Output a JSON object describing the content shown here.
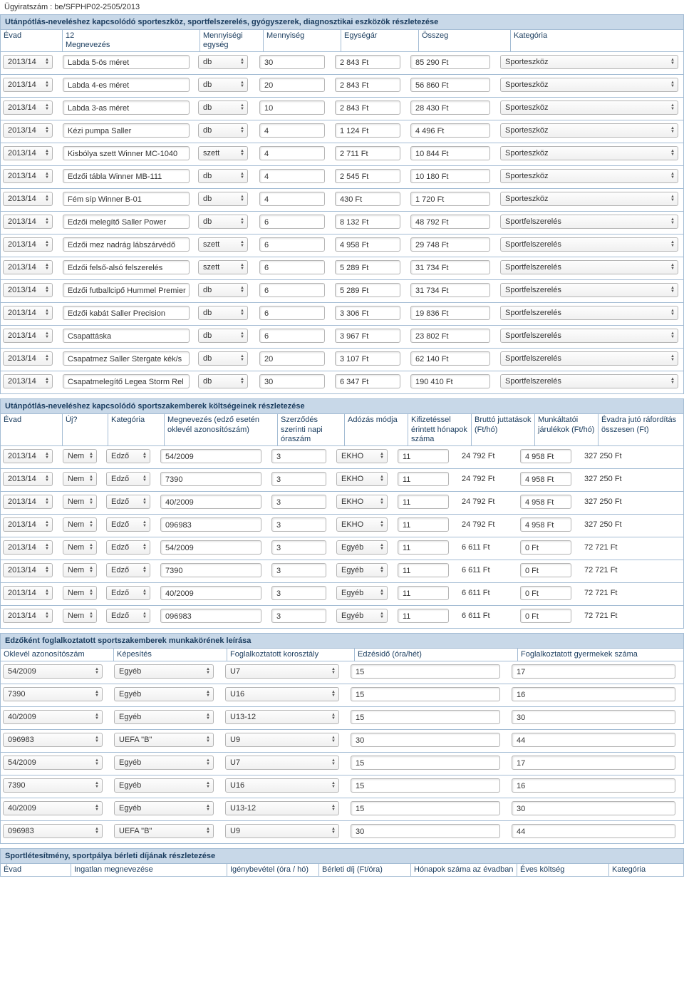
{
  "file_ref": "Ügyiratszám : be/SFPHP02-2505/2013",
  "equip": {
    "title": "Utánpótlás-neveléshez kapcsolódó sporteszköz, sportfelszerelés, gyógyszerek, diagnosztikai eszközök részletezése",
    "headers": [
      "Évad",
      "12\nMegnevezés",
      "Mennyiségi egység",
      "Mennyiség",
      "Egységár",
      "Összeg",
      "Kategória"
    ],
    "rows": [
      {
        "y": "2013/14",
        "n": "Labda 5-ös méret",
        "u": "db",
        "q": "30",
        "p": "2 843 Ft",
        "t": "85 290 Ft",
        "c": "Sporteszköz"
      },
      {
        "y": "2013/14",
        "n": "Labda 4-es méret",
        "u": "db",
        "q": "20",
        "p": "2 843 Ft",
        "t": "56 860 Ft",
        "c": "Sporteszköz"
      },
      {
        "y": "2013/14",
        "n": "Labda 3-as méret",
        "u": "db",
        "q": "10",
        "p": "2 843 Ft",
        "t": "28 430 Ft",
        "c": "Sporteszköz"
      },
      {
        "y": "2013/14",
        "n": "Kézi pumpa Saller",
        "u": "db",
        "q": "4",
        "p": "1 124 Ft",
        "t": "4 496 Ft",
        "c": "Sporteszköz"
      },
      {
        "y": "2013/14",
        "n": "Kisbólya szett Winner MC-1040",
        "u": "szett",
        "q": "4",
        "p": "2 711 Ft",
        "t": "10 844 Ft",
        "c": "Sporteszköz"
      },
      {
        "y": "2013/14",
        "n": "Edzői tábla Winner MB-111",
        "u": "db",
        "q": "4",
        "p": "2 545 Ft",
        "t": "10 180 Ft",
        "c": "Sporteszköz"
      },
      {
        "y": "2013/14",
        "n": "Fém síp Winner B-01",
        "u": "db",
        "q": "4",
        "p": "430 Ft",
        "t": "1 720 Ft",
        "c": "Sporteszköz"
      },
      {
        "y": "2013/14",
        "n": "Edzői melegítő Saller Power",
        "u": "db",
        "q": "6",
        "p": "8 132 Ft",
        "t": "48 792 Ft",
        "c": "Sportfelszerelés"
      },
      {
        "y": "2013/14",
        "n": "Edzői mez nadrág lábszárvédő",
        "u": "szett",
        "q": "6",
        "p": "4 958 Ft",
        "t": "29 748 Ft",
        "c": "Sportfelszerelés"
      },
      {
        "y": "2013/14",
        "n": "Edzői felső-alsó felszerelés",
        "u": "szett",
        "q": "6",
        "p": "5 289 Ft",
        "t": "31 734 Ft",
        "c": "Sportfelszerelés"
      },
      {
        "y": "2013/14",
        "n": "Edzői futballcipő Hummel Premier",
        "u": "db",
        "q": "6",
        "p": "5 289 Ft",
        "t": "31 734 Ft",
        "c": "Sportfelszerelés"
      },
      {
        "y": "2013/14",
        "n": "Edzői kabát Saller Precision",
        "u": "db",
        "q": "6",
        "p": "3 306 Ft",
        "t": "19 836 Ft",
        "c": "Sportfelszerelés"
      },
      {
        "y": "2013/14",
        "n": "Csapattáska",
        "u": "db",
        "q": "6",
        "p": "3 967 Ft",
        "t": "23 802 Ft",
        "c": "Sportfelszerelés"
      },
      {
        "y": "2013/14",
        "n": "Csapatmez Saller Stergate kék/s",
        "u": "db",
        "q": "20",
        "p": "3 107 Ft",
        "t": "62 140 Ft",
        "c": "Sportfelszerelés"
      },
      {
        "y": "2013/14",
        "n": "Csapatmelegítő Legea Storm Rel",
        "u": "db",
        "q": "30",
        "p": "6 347 Ft",
        "t": "190 410 Ft",
        "c": "Sportfelszerelés"
      }
    ]
  },
  "staff": {
    "title": "Utánpótlás-neveléshez kapcsolódó sportszakemberek költségeinek részletezése",
    "headers": [
      "Évad",
      "Új?",
      "Kategória",
      "Megnevezés (edző esetén oklevél azonosítószám)",
      "Szerződés szerinti napi óraszám",
      "Adózás módja",
      "Kifizetéssel érintett hónapok száma",
      "Bruttó juttatások (Ft/hó)",
      "Munkáltatói járulékok (Ft/hó)",
      "Évadra jutó ráfordítás összesen (Ft)"
    ],
    "rows": [
      {
        "y": "2013/14",
        "u": "Nem",
        "k": "Edző",
        "m": "54/2009",
        "h": "3",
        "a": "EKHO",
        "mo": "11",
        "b": "24 792 Ft",
        "j": "4 958 Ft",
        "e": "327 250 Ft"
      },
      {
        "y": "2013/14",
        "u": "Nem",
        "k": "Edző",
        "m": "7390",
        "h": "3",
        "a": "EKHO",
        "mo": "11",
        "b": "24 792 Ft",
        "j": "4 958 Ft",
        "e": "327 250 Ft"
      },
      {
        "y": "2013/14",
        "u": "Nem",
        "k": "Edző",
        "m": "40/2009",
        "h": "3",
        "a": "EKHO",
        "mo": "11",
        "b": "24 792 Ft",
        "j": "4 958 Ft",
        "e": "327 250 Ft"
      },
      {
        "y": "2013/14",
        "u": "Nem",
        "k": "Edző",
        "m": "096983",
        "h": "3",
        "a": "EKHO",
        "mo": "11",
        "b": "24 792 Ft",
        "j": "4 958 Ft",
        "e": "327 250 Ft"
      },
      {
        "y": "2013/14",
        "u": "Nem",
        "k": "Edző",
        "m": "54/2009",
        "h": "3",
        "a": "Egyéb",
        "mo": "11",
        "b": "6 611 Ft",
        "j": "0 Ft",
        "e": "72 721 Ft"
      },
      {
        "y": "2013/14",
        "u": "Nem",
        "k": "Edző",
        "m": "7390",
        "h": "3",
        "a": "Egyéb",
        "mo": "11",
        "b": "6 611 Ft",
        "j": "0 Ft",
        "e": "72 721 Ft"
      },
      {
        "y": "2013/14",
        "u": "Nem",
        "k": "Edző",
        "m": "40/2009",
        "h": "3",
        "a": "Egyéb",
        "mo": "11",
        "b": "6 611 Ft",
        "j": "0 Ft",
        "e": "72 721 Ft"
      },
      {
        "y": "2013/14",
        "u": "Nem",
        "k": "Edző",
        "m": "096983",
        "h": "3",
        "a": "Egyéb",
        "mo": "11",
        "b": "6 611 Ft",
        "j": "0 Ft",
        "e": "72 721 Ft"
      }
    ]
  },
  "coach": {
    "title": "Edzőként foglalkoztatott sportszakemberek munkakörének leírása",
    "headers": [
      "Oklevél azonosítószám",
      "Képesítés",
      "Foglalkoztatott korosztály",
      "Edzésidő (óra/hét)",
      "Foglalkoztatott gyermekek száma"
    ],
    "rows": [
      {
        "o": "54/2009",
        "kp": "Egyéb",
        "ko": "U7",
        "ei": "15",
        "g": "17"
      },
      {
        "o": "7390",
        "kp": "Egyéb",
        "ko": "U16",
        "ei": "15",
        "g": "16"
      },
      {
        "o": "40/2009",
        "kp": "Egyéb",
        "ko": "U13-12",
        "ei": "15",
        "g": "30"
      },
      {
        "o": "096983",
        "kp": "UEFA \"B\"",
        "ko": "U9",
        "ei": "30",
        "g": "44"
      },
      {
        "o": "54/2009",
        "kp": "Egyéb",
        "ko": "U7",
        "ei": "15",
        "g": "17"
      },
      {
        "o": "7390",
        "kp": "Egyéb",
        "ko": "U16",
        "ei": "15",
        "g": "16"
      },
      {
        "o": "40/2009",
        "kp": "Egyéb",
        "ko": "U13-12",
        "ei": "15",
        "g": "30"
      },
      {
        "o": "096983",
        "kp": "UEFA \"B\"",
        "ko": "U9",
        "ei": "30",
        "g": "44"
      }
    ]
  },
  "rent": {
    "title": "Sportlétesítmény, sportpálya bérleti díjának részletezése",
    "headers": [
      "Évad",
      "Ingatlan megnevezése",
      "Igénybevétel (óra / hó)",
      "Bérleti díj (Ft/óra)",
      "Hónapok száma az évadban",
      "Éves költség",
      "Kategória"
    ]
  }
}
